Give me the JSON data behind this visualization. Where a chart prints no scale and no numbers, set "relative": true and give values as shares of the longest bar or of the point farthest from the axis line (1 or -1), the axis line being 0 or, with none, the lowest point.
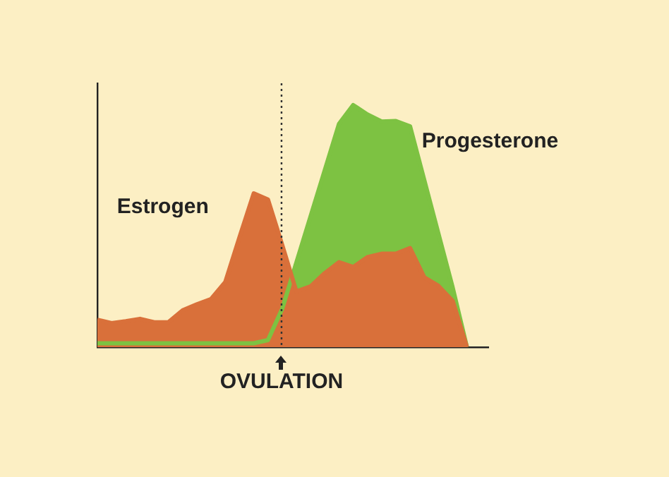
{
  "chart_data": {
    "type": "area",
    "relative": true,
    "grid": false,
    "legend": false,
    "marker": "none",
    "categories": [
      null,
      null,
      null,
      null,
      null,
      null,
      null,
      null,
      null,
      null,
      null,
      null,
      null,
      null,
      null,
      null,
      null,
      null,
      null,
      null,
      null,
      null,
      null,
      null,
      null,
      null,
      null
    ],
    "series": [
      {
        "name": "Estrogen",
        "color": "#d9703a",
        "values": [
          0.113,
          0.099,
          0.107,
          0.117,
          0.103,
          0.103,
          0.152,
          0.177,
          0.199,
          0.269,
          0.454,
          0.635,
          0.61,
          0.423,
          0.23,
          0.251,
          0.306,
          0.351,
          0.331,
          0.372,
          0.386,
          0.386,
          0.409,
          0.288,
          0.253,
          0.191,
          0
        ]
      },
      {
        "name": "Progesterone",
        "color": "#7dc242",
        "values": [
          0.016,
          0.016,
          0.016,
          0.016,
          0.016,
          0.016,
          0.016,
          0.016,
          0.016,
          0.016,
          0.016,
          0.016,
          0.029,
          0.158,
          0.349,
          0.54,
          0.731,
          0.922,
          1,
          0.961,
          0.932,
          0.934,
          0.912,
          0.69,
          0.468,
          0.246,
          0
        ]
      }
    ],
    "annotations": [
      "OVULATION"
    ]
  }
}
